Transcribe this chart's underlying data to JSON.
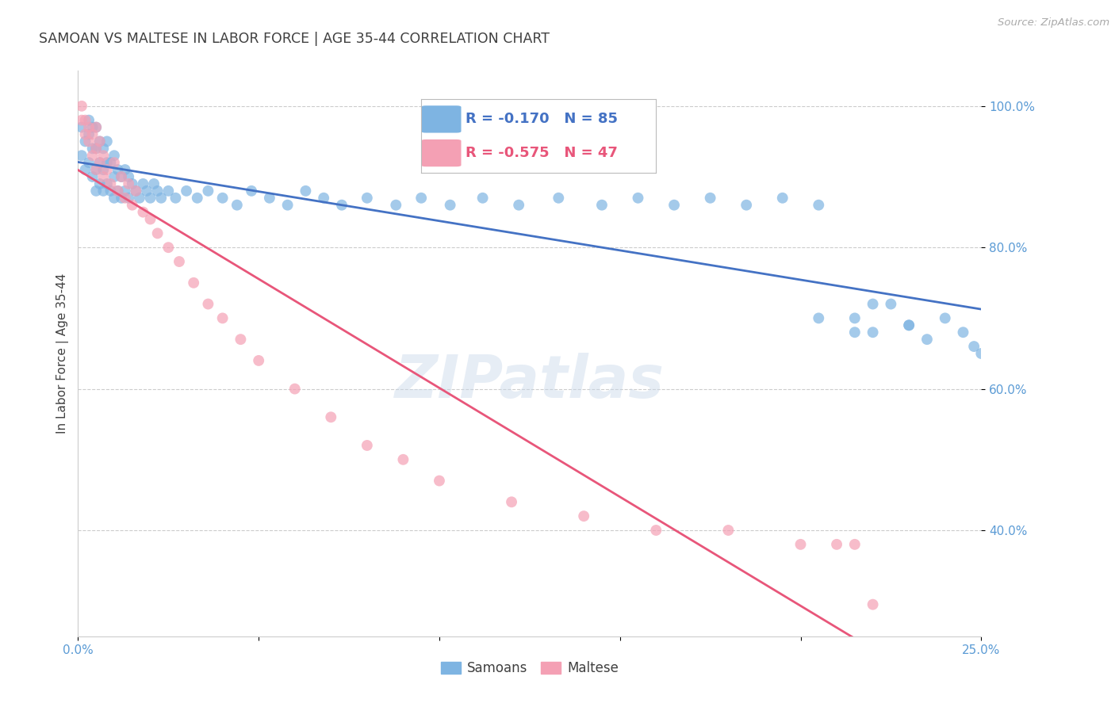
{
  "title": "SAMOAN VS MALTESE IN LABOR FORCE | AGE 35-44 CORRELATION CHART",
  "source": "Source: ZipAtlas.com",
  "ylabel_label": "In Labor Force | Age 35-44",
  "x_min": 0.0,
  "x_max": 0.25,
  "y_min": 0.25,
  "y_max": 1.05,
  "x_ticks": [
    0.0,
    0.05,
    0.1,
    0.15,
    0.2,
    0.25
  ],
  "x_tick_labels": [
    "0.0%",
    "",
    "",
    "",
    "",
    "25.0%"
  ],
  "y_ticks": [
    0.4,
    0.6,
    0.8,
    1.0
  ],
  "y_tick_labels": [
    "40.0%",
    "60.0%",
    "80.0%",
    "100.0%"
  ],
  "samoans_R": -0.17,
  "samoans_N": 85,
  "maltese_R": -0.575,
  "maltese_N": 47,
  "samoans_color": "#7EB4E2",
  "maltese_color": "#F4A0B4",
  "samoans_line_color": "#4472C4",
  "maltese_line_color": "#E8567A",
  "watermark": "ZIPatlas",
  "background_color": "#FFFFFF",
  "grid_color": "#CCCCCC",
  "title_color": "#404040",
  "axis_label_color": "#404040",
  "tick_label_color": "#5B9BD5",
  "samoans_x": [
    0.001,
    0.001,
    0.002,
    0.002,
    0.003,
    0.003,
    0.003,
    0.004,
    0.004,
    0.004,
    0.005,
    0.005,
    0.005,
    0.005,
    0.006,
    0.006,
    0.006,
    0.007,
    0.007,
    0.007,
    0.008,
    0.008,
    0.008,
    0.009,
    0.009,
    0.01,
    0.01,
    0.01,
    0.011,
    0.011,
    0.012,
    0.012,
    0.013,
    0.013,
    0.014,
    0.014,
    0.015,
    0.016,
    0.017,
    0.018,
    0.019,
    0.02,
    0.021,
    0.022,
    0.023,
    0.025,
    0.027,
    0.03,
    0.033,
    0.036,
    0.04,
    0.044,
    0.048,
    0.053,
    0.058,
    0.063,
    0.068,
    0.073,
    0.08,
    0.088,
    0.095,
    0.103,
    0.112,
    0.122,
    0.133,
    0.145,
    0.155,
    0.165,
    0.175,
    0.185,
    0.195,
    0.205,
    0.215,
    0.22,
    0.225,
    0.23,
    0.235,
    0.24,
    0.245,
    0.248,
    0.25,
    0.205,
    0.215,
    0.22,
    0.23
  ],
  "samoans_y": [
    0.93,
    0.97,
    0.91,
    0.95,
    0.92,
    0.96,
    0.98,
    0.9,
    0.94,
    0.97,
    0.88,
    0.91,
    0.94,
    0.97,
    0.89,
    0.92,
    0.95,
    0.88,
    0.91,
    0.94,
    0.89,
    0.92,
    0.95,
    0.88,
    0.92,
    0.87,
    0.9,
    0.93,
    0.88,
    0.91,
    0.87,
    0.9,
    0.88,
    0.91,
    0.87,
    0.9,
    0.89,
    0.88,
    0.87,
    0.89,
    0.88,
    0.87,
    0.89,
    0.88,
    0.87,
    0.88,
    0.87,
    0.88,
    0.87,
    0.88,
    0.87,
    0.86,
    0.88,
    0.87,
    0.86,
    0.88,
    0.87,
    0.86,
    0.87,
    0.86,
    0.87,
    0.86,
    0.87,
    0.86,
    0.87,
    0.86,
    0.87,
    0.86,
    0.87,
    0.86,
    0.87,
    0.86,
    0.7,
    0.68,
    0.72,
    0.69,
    0.67,
    0.7,
    0.68,
    0.66,
    0.65,
    0.7,
    0.68,
    0.72,
    0.69
  ],
  "maltese_x": [
    0.001,
    0.001,
    0.002,
    0.002,
    0.003,
    0.003,
    0.004,
    0.004,
    0.005,
    0.005,
    0.005,
    0.006,
    0.006,
    0.007,
    0.007,
    0.008,
    0.009,
    0.01,
    0.011,
    0.012,
    0.013,
    0.014,
    0.015,
    0.016,
    0.018,
    0.02,
    0.022,
    0.025,
    0.028,
    0.032,
    0.036,
    0.04,
    0.045,
    0.05,
    0.06,
    0.07,
    0.08,
    0.09,
    0.1,
    0.12,
    0.14,
    0.16,
    0.18,
    0.2,
    0.21,
    0.215,
    0.22
  ],
  "maltese_y": [
    0.98,
    1.0,
    0.96,
    0.98,
    0.95,
    0.97,
    0.93,
    0.96,
    0.91,
    0.94,
    0.97,
    0.92,
    0.95,
    0.9,
    0.93,
    0.91,
    0.89,
    0.92,
    0.88,
    0.9,
    0.87,
    0.89,
    0.86,
    0.88,
    0.85,
    0.84,
    0.82,
    0.8,
    0.78,
    0.75,
    0.72,
    0.7,
    0.67,
    0.64,
    0.6,
    0.56,
    0.52,
    0.5,
    0.47,
    0.44,
    0.42,
    0.4,
    0.4,
    0.38,
    0.38,
    0.38,
    0.295
  ]
}
